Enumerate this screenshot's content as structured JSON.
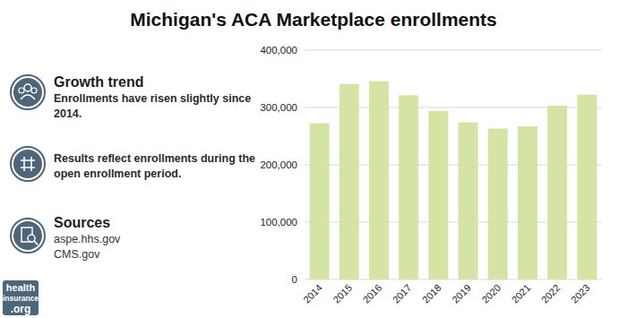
{
  "chart_data": {
    "type": "bar",
    "title": "Michigan's ACA Marketplace enrollments",
    "categories": [
      "2014",
      "2015",
      "2016",
      "2017",
      "2018",
      "2019",
      "2020",
      "2021",
      "2022",
      "2023"
    ],
    "values": [
      272539,
      341183,
      345813,
      321451,
      293940,
      274058,
      263197,
      267070,
      303183,
      322273
    ],
    "color": "#d4e4a4",
    "ylim": [
      0,
      400000
    ],
    "yticks": [
      0,
      {
        "value": 100000,
        "label": "100,000"
      },
      {
        "value": 200000,
        "label": "200,000"
      },
      {
        "value": 300000,
        "label": "300,000"
      },
      {
        "value": 400000,
        "label": "400,000"
      }
    ],
    "grid": true,
    "annotations": [
      {
        "title": "Growth trend",
        "text": "Enrollments have risen slightly since 2014."
      },
      {
        "text": "Results reflect enrollments during the open enrollment period."
      },
      {
        "title": "Sources",
        "lines": [
          "aspe.hhs.gov",
          "CMS.gov"
        ]
      }
    ],
    "logo": [
      "health",
      "insurance",
      ".org"
    ]
  }
}
